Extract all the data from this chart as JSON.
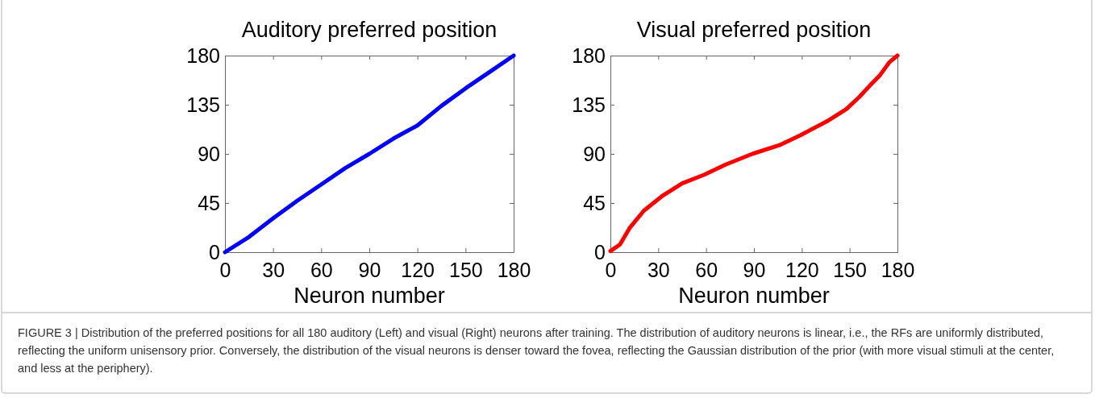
{
  "chart_data": [
    {
      "type": "line",
      "title": "Auditory preferred position",
      "xlabel": "Neuron number",
      "series": [
        {
          "color": "#0000ff",
          "x": [
            0,
            15,
            30,
            45,
            60,
            75,
            90,
            105,
            120,
            135,
            150,
            165,
            180
          ],
          "values": [
            0,
            14,
            31,
            47,
            62,
            77,
            90,
            104,
            116,
            134,
            150,
            165,
            180
          ]
        }
      ],
      "xlim": [
        0,
        180
      ],
      "xticks": [
        0,
        30,
        60,
        90,
        120,
        150,
        180
      ],
      "ylim": [
        0,
        180
      ],
      "yticks": [
        0,
        45,
        90,
        135,
        180
      ],
      "grid": false,
      "marker": "none",
      "line_style": "solid"
    },
    {
      "type": "line",
      "title": "Visual preferred position",
      "xlabel": "Neuron number",
      "series": [
        {
          "color": "#ff0000",
          "x": [
            0,
            6,
            12,
            21,
            33,
            45,
            59,
            72,
            89,
            106,
            119,
            136,
            148,
            156,
            163,
            169,
            175,
            180
          ],
          "values": [
            1,
            7,
            22,
            38,
            52,
            63,
            71,
            80,
            90,
            98,
            107,
            120,
            131,
            142,
            153,
            162,
            174,
            180
          ]
        }
      ],
      "xlim": [
        0,
        180
      ],
      "xticks": [
        0,
        30,
        60,
        90,
        120,
        150,
        180
      ],
      "ylim": [
        0,
        180
      ],
      "yticks": [
        0,
        45,
        90,
        135,
        180
      ],
      "grid": false,
      "marker": "none",
      "line_style": "solid",
      "annotations": [
        "FIGURE 3 | Distribution of the preferred positions for all 180 auditory (Left) and visual (Right) neurons after training. The distribution of auditory neurons is linear, i.e., the RFs are uniformly distributed, reflecting the uniform unisensory prior. Conversely, the distribution of the visual neurons is denser toward the fovea, reflecting the Gaussian distribution of the prior (with more visual stimuli at the center, and less at the periphery)."
      ]
    }
  ]
}
